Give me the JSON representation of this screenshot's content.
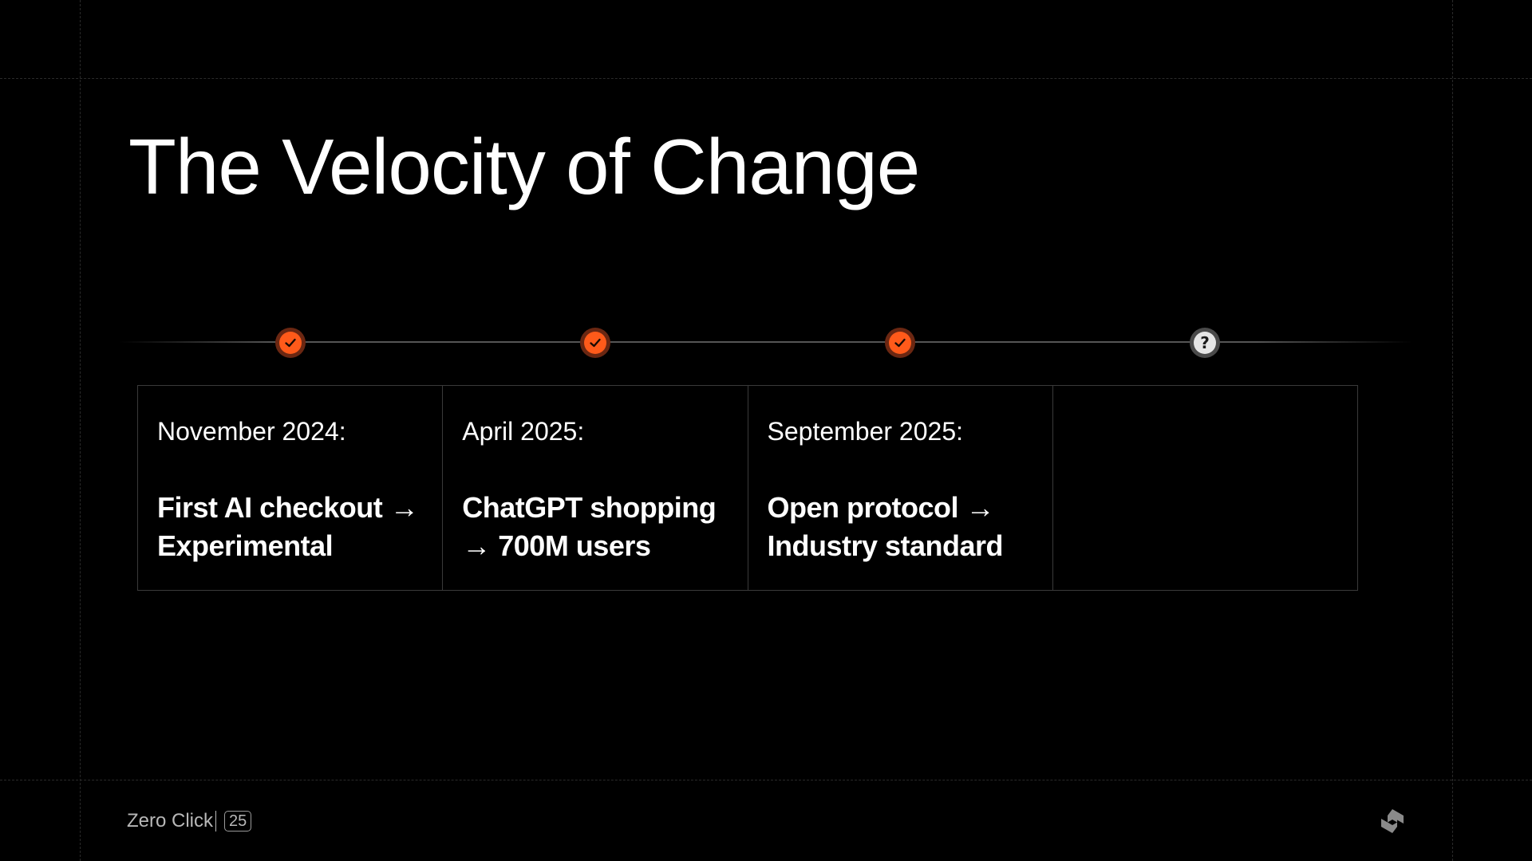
{
  "slide": {
    "title": "The Velocity of Change"
  },
  "timeline": {
    "milestones": [
      {
        "status": "done",
        "icon": "check-icon",
        "date": "November 2024:",
        "text": "First AI checkout → Experimental"
      },
      {
        "status": "done",
        "icon": "check-icon",
        "date": "April 2025:",
        "text": "ChatGPT shopping → 700M users"
      },
      {
        "status": "done",
        "icon": "check-icon",
        "date": "September 2025:",
        "text": "Open protocol → Industry standard"
      },
      {
        "status": "unknown",
        "icon": "question-icon",
        "date": "",
        "text": ""
      }
    ]
  },
  "footer": {
    "brand": "Zero Click",
    "page_number": "25",
    "logo_icon": "brand-logo-icon"
  },
  "colors": {
    "accent": "#ff5a1a",
    "background": "#000000",
    "text": "#ffffff"
  }
}
